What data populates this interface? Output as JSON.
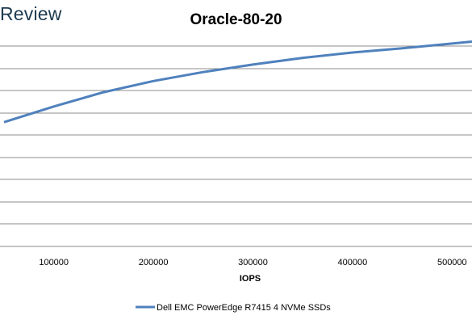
{
  "brand": {
    "text": "Review"
  },
  "chart_data": {
    "type": "line",
    "title": "Oracle-80-20",
    "xlabel": "IOPS",
    "ylabel": "",
    "xlim": [
      50000,
      520000
    ],
    "xticks": [
      100000,
      200000,
      300000,
      400000,
      500000
    ],
    "ylim": [
      0,
      8
    ],
    "grid": true,
    "legend": "bottom",
    "series": [
      {
        "name": "Dell EMC PowerEdge R7415 4 NVMe SSDs",
        "color": "#4f81bd",
        "x": [
          50000,
          100000,
          150000,
          200000,
          250000,
          300000,
          350000,
          400000,
          450000,
          500000,
          520000
        ],
        "y": [
          4.5,
          5.06,
          5.57,
          5.97,
          6.29,
          6.56,
          6.8,
          6.99,
          7.14,
          7.31,
          7.38
        ]
      }
    ]
  }
}
